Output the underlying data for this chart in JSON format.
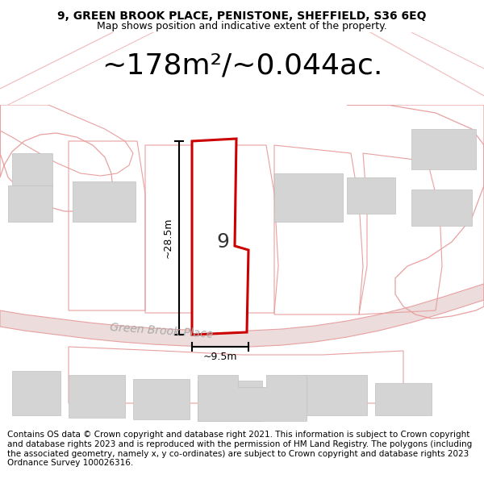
{
  "title_line1": "9, GREEN BROOK PLACE, PENISTONE, SHEFFIELD, S36 6EQ",
  "title_line2": "Map shows position and indicative extent of the property.",
  "area_text": "~178m²/~0.044ac.",
  "label_9": "9",
  "label_28m": "~28.5m",
  "label_9m": "~9.5m",
  "road_label": "Green Brook Place",
  "footer_text": "Contains OS data © Crown copyright and database right 2021. This information is subject to Crown copyright and database rights 2023 and is reproduced with the permission of HM Land Registry. The polygons (including the associated geometry, namely x, y co-ordinates) are subject to Crown copyright and database rights 2023 Ordnance Survey 100026316.",
  "bg_color": "#ffffff",
  "map_bg": "#faf4f4",
  "plot_edge_color": "#cc0000",
  "pink_outline": "#e8a0a0",
  "building_color": "#d4d4d4",
  "building_edge": "#c0c0c0",
  "road_fill": "#ecdcdc",
  "dim_color": "#000000",
  "title_fontsize": 10,
  "subtitle_fontsize": 9,
  "area_fontsize": 26,
  "label_fontsize": 18,
  "dim_fontsize": 9,
  "road_fontsize": 10,
  "footer_fontsize": 7.5
}
